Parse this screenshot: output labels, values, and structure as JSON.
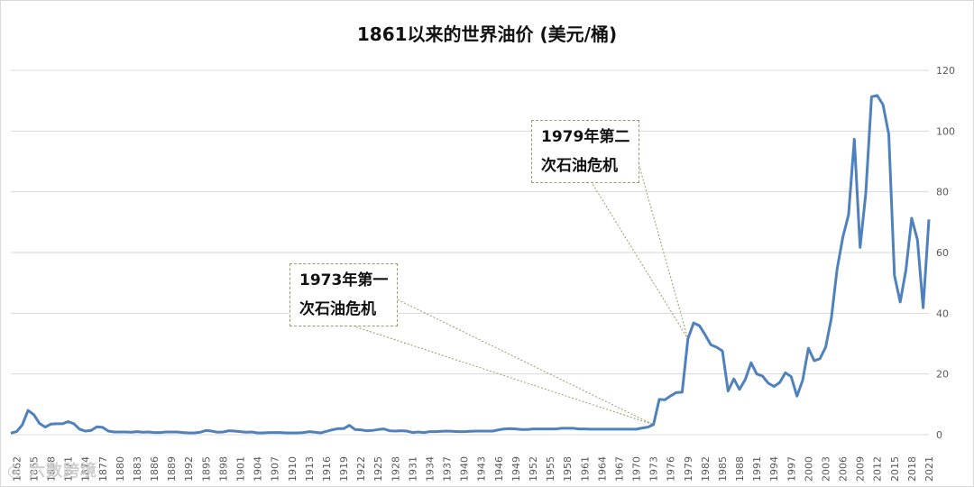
{
  "chart_data": {
    "type": "line",
    "title": "1861以来的世界油价 (美元/桶)",
    "ylim": [
      0,
      120
    ],
    "y_ticks": [
      0,
      20,
      40,
      60,
      80,
      100,
      120
    ],
    "y_axis_side": "right",
    "grid": true,
    "x_tick_labels": [
      "1862",
      "1865",
      "1868",
      "1871",
      "1874",
      "1877",
      "1880",
      "1883",
      "1886",
      "1889",
      "1892",
      "1895",
      "1898",
      "1901",
      "1904",
      "1907",
      "1910",
      "1913",
      "1916",
      "1919",
      "1922",
      "1925",
      "1928",
      "1931",
      "1934",
      "1937",
      "1940",
      "1943",
      "1946",
      "1949",
      "1952",
      "1955",
      "1958",
      "1961",
      "1964",
      "1967",
      "1970",
      "1973",
      "1976",
      "1979",
      "1982",
      "1985",
      "1988",
      "1991",
      "1994",
      "1997",
      "2000",
      "2003",
      "2006",
      "2009",
      "2012",
      "2015",
      "2018",
      "2021"
    ],
    "series": [
      {
        "color": "#4f81bd",
        "x": [
          1861,
          1862,
          1863,
          1864,
          1865,
          1866,
          1867,
          1868,
          1869,
          1870,
          1871,
          1872,
          1873,
          1874,
          1875,
          1876,
          1877,
          1878,
          1879,
          1880,
          1881,
          1882,
          1883,
          1884,
          1885,
          1886,
          1887,
          1888,
          1889,
          1890,
          1891,
          1892,
          1893,
          1894,
          1895,
          1896,
          1897,
          1898,
          1899,
          1900,
          1901,
          1902,
          1903,
          1904,
          1905,
          1906,
          1907,
          1908,
          1909,
          1910,
          1911,
          1912,
          1913,
          1914,
          1915,
          1916,
          1917,
          1918,
          1919,
          1920,
          1921,
          1922,
          1923,
          1924,
          1925,
          1926,
          1927,
          1928,
          1929,
          1930,
          1931,
          1932,
          1933,
          1934,
          1935,
          1936,
          1937,
          1938,
          1939,
          1940,
          1941,
          1942,
          1943,
          1944,
          1945,
          1946,
          1947,
          1948,
          1949,
          1950,
          1951,
          1952,
          1953,
          1954,
          1955,
          1956,
          1957,
          1958,
          1959,
          1960,
          1961,
          1962,
          1963,
          1964,
          1965,
          1966,
          1967,
          1968,
          1969,
          1970,
          1971,
          1972,
          1973,
          1974,
          1975,
          1976,
          1977,
          1978,
          1979,
          1980,
          1981,
          1982,
          1983,
          1984,
          1985,
          1986,
          1987,
          1988,
          1989,
          1990,
          1991,
          1992,
          1993,
          1994,
          1995,
          1996,
          1997,
          1998,
          1999,
          2000,
          2001,
          2002,
          2003,
          2004,
          2005,
          2006,
          2007,
          2008,
          2009,
          2010,
          2011,
          2012,
          2013,
          2014,
          2015,
          2016,
          2017,
          2018,
          2019,
          2020,
          2021
        ],
        "values": [
          0.5,
          1.0,
          3.2,
          8.0,
          6.6,
          3.7,
          2.5,
          3.5,
          3.6,
          3.6,
          4.3,
          3.6,
          1.8,
          1.2,
          1.4,
          2.6,
          2.4,
          1.2,
          0.9,
          0.9,
          0.9,
          0.8,
          1.0,
          0.8,
          0.9,
          0.7,
          0.7,
          0.9,
          0.9,
          0.9,
          0.7,
          0.6,
          0.6,
          0.8,
          1.4,
          1.2,
          0.8,
          0.9,
          1.3,
          1.2,
          1.0,
          0.8,
          0.9,
          0.6,
          0.6,
          0.7,
          0.7,
          0.7,
          0.6,
          0.6,
          0.6,
          0.7,
          1.0,
          0.8,
          0.6,
          1.1,
          1.6,
          2.0,
          2.0,
          3.1,
          1.7,
          1.6,
          1.3,
          1.4,
          1.7,
          1.9,
          1.3,
          1.2,
          1.3,
          1.2,
          0.7,
          0.9,
          0.7,
          1.0,
          1.0,
          1.1,
          1.2,
          1.1,
          1.0,
          1.0,
          1.1,
          1.2,
          1.2,
          1.2,
          1.2,
          1.6,
          1.9,
          2.0,
          1.9,
          1.7,
          1.7,
          1.9,
          1.9,
          1.9,
          1.9,
          1.9,
          2.1,
          2.1,
          2.1,
          1.9,
          1.9,
          1.8,
          1.8,
          1.8,
          1.8,
          1.8,
          1.8,
          1.8,
          1.8,
          1.8,
          2.2,
          2.5,
          3.3,
          11.6,
          11.5,
          12.8,
          13.9,
          14.0,
          31.6,
          36.8,
          35.9,
          32.9,
          29.6,
          28.8,
          27.6,
          14.4,
          18.4,
          14.9,
          18.2,
          23.7,
          20.0,
          19.3,
          17.0,
          15.9,
          17.2,
          20.4,
          19.1,
          12.7,
          17.9,
          28.5,
          24.4,
          25.0,
          28.8,
          38.3,
          54.5,
          65.1,
          72.4,
          97.3,
          61.7,
          79.5,
          111.3,
          111.7,
          108.7,
          98.9,
          52.4,
          43.7,
          54.2,
          71.3,
          64.2,
          41.8,
          70.9
        ]
      }
    ],
    "annotations": [
      {
        "text": "1973年第一\n次石油危机",
        "target_year": 1973
      },
      {
        "text": "1979年第二\n次石油危机",
        "target_year": 1979
      }
    ]
  },
  "watermark": "◎ 六数跨境"
}
